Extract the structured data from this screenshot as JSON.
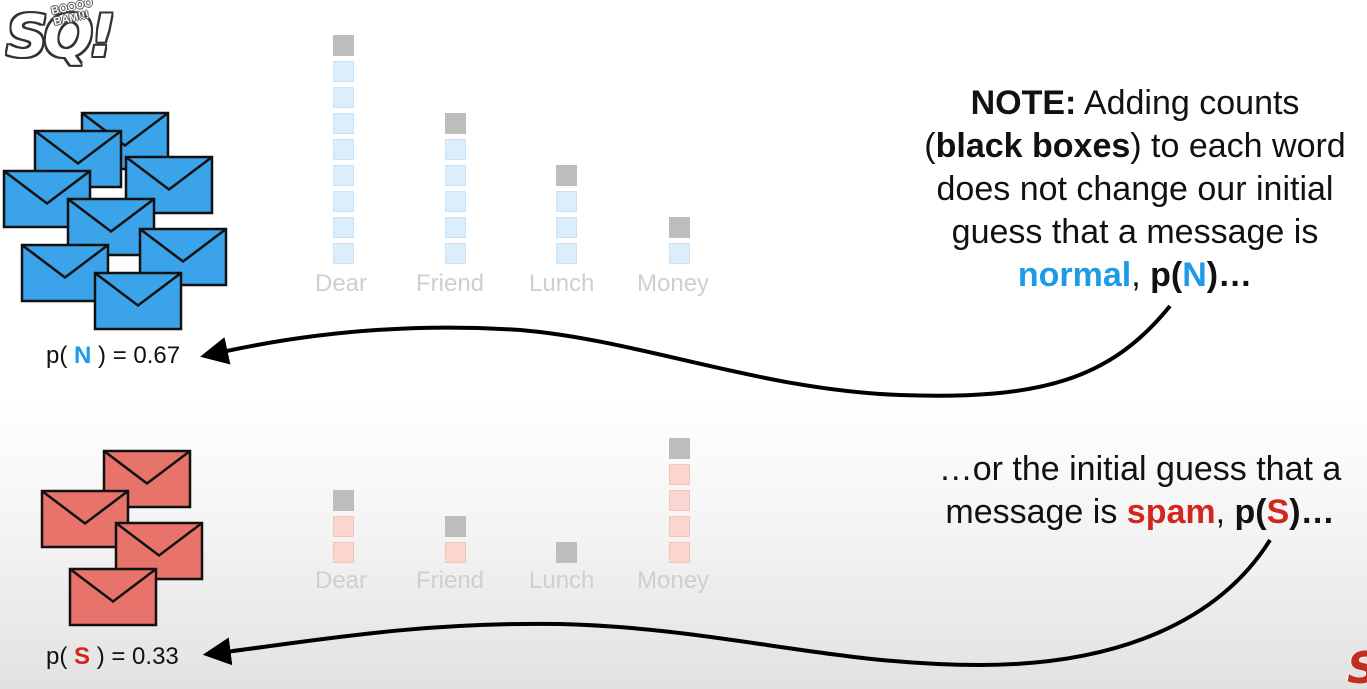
{
  "logo": {
    "main_text": "SQ!",
    "bubble_text": "BOOOO BAM!!!"
  },
  "normal": {
    "prob_prefix": "p(",
    "class_letter": "N",
    "prob_suffix": ") = 0.67",
    "envelope_color": "#3aa3e9",
    "box_color": "#dceefc"
  },
  "spam": {
    "prob_prefix": "p(",
    "class_letter": "S",
    "prob_suffix": ") = 0.33",
    "envelope_color": "#e8736a",
    "box_color": "#fbd6d1"
  },
  "words": [
    "Dear",
    "Friend",
    "Lunch",
    "Money"
  ],
  "chart_data": [
    {
      "type": "bar",
      "categories": [
        "Dear",
        "Friend",
        "Lunch",
        "Money"
      ],
      "series": [
        {
          "name": "counts",
          "values": [
            8,
            5,
            3,
            1
          ]
        },
        {
          "name": "black boxes",
          "values": [
            1,
            1,
            1,
            1
          ]
        }
      ]
    },
    {
      "type": "bar",
      "categories": [
        "Dear",
        "Friend",
        "Lunch",
        "Money"
      ],
      "series": [
        {
          "name": "counts",
          "values": [
            2,
            1,
            0,
            4
          ]
        },
        {
          "name": "black boxes",
          "values": [
            1,
            1,
            1,
            1
          ]
        }
      ]
    }
  ],
  "note1": {
    "l1_bold": "NOTE:",
    "l1_rest": " Adding counts",
    "l2_open": "(",
    "l2_bold": "black boxes",
    "l2_rest": ") to each word",
    "l3": "does not change our initial",
    "l4": "guess that a message is",
    "l5_colored": "normal",
    "l5_sep": ", ",
    "l5_p_open": "p(",
    "l5_letter": "N",
    "l5_p_close": ")…"
  },
  "note2": {
    "l1": "…or the initial guess that a",
    "l2_pre": "message is ",
    "l2_colored": "spam",
    "l2_sep": ", ",
    "l2_p_open": "p(",
    "l2_letter": "S",
    "l2_p_close": ")…"
  },
  "colors": {
    "accent_blue": "#1e9be6",
    "accent_red": "#d3271d",
    "black_box": "#bdbdbd",
    "word_label": "#cfcfcf"
  }
}
